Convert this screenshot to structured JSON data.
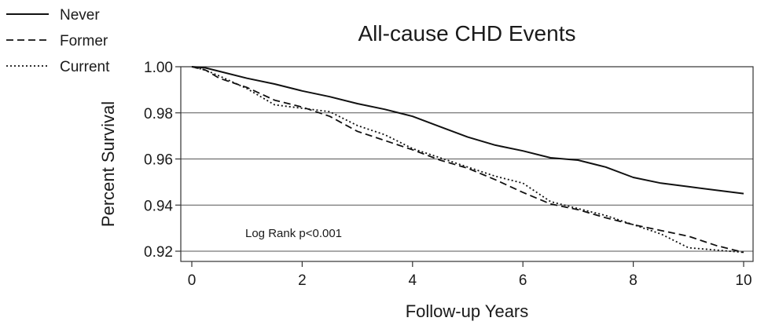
{
  "chart_data": {
    "type": "line",
    "title": "All-cause CHD Events",
    "xlabel": "Follow-up Years",
    "ylabel": "Percent Survival",
    "xlim": [
      0,
      10
    ],
    "ylim": [
      0.92,
      1.0
    ],
    "xticks": [
      0,
      2,
      4,
      6,
      8,
      10
    ],
    "yticks": [
      0.92,
      0.94,
      0.96,
      0.98,
      1.0
    ],
    "xtick_labels": [
      "0",
      "2",
      "4",
      "6",
      "8",
      "10"
    ],
    "ytick_labels": [
      "0.92",
      "0.94",
      "0.96",
      "0.98",
      "1.00"
    ],
    "grid": "horizontal",
    "legend_position": "top-left",
    "annotation": "Log Rank p<0.001",
    "series": [
      {
        "name": "Never",
        "style": "solid",
        "x": [
          0,
          0.25,
          0.5,
          1,
          1.5,
          2,
          2.5,
          3,
          3.5,
          4,
          4.5,
          5,
          5.5,
          6,
          6.5,
          7,
          7.5,
          8,
          8.5,
          9,
          9.5,
          10
        ],
        "y": [
          1.0,
          0.9995,
          0.998,
          0.995,
          0.9925,
          0.9895,
          0.987,
          0.984,
          0.9815,
          0.9785,
          0.974,
          0.9695,
          0.966,
          0.9635,
          0.9605,
          0.9595,
          0.9565,
          0.952,
          0.9495,
          0.948,
          0.9465,
          0.945
        ]
      },
      {
        "name": "Former",
        "style": "dashed",
        "x": [
          0,
          0.25,
          0.5,
          1,
          1.5,
          2,
          2.5,
          3,
          3.5,
          4,
          4.5,
          5,
          5.5,
          6,
          6.5,
          7,
          7.5,
          8,
          8.5,
          9,
          9.5,
          10
        ],
        "y": [
          1.0,
          0.9985,
          0.995,
          0.991,
          0.9855,
          0.9825,
          0.9785,
          0.972,
          0.968,
          0.964,
          0.9595,
          0.956,
          0.951,
          0.9455,
          0.9405,
          0.938,
          0.9345,
          0.9315,
          0.929,
          0.9265,
          0.9225,
          0.9195
        ]
      },
      {
        "name": "Current",
        "style": "dotted",
        "x": [
          0,
          0.25,
          0.5,
          1,
          1.5,
          2,
          2.5,
          3,
          3.5,
          4,
          4.5,
          5,
          5.5,
          6,
          6.5,
          7,
          7.5,
          8,
          8.5,
          9,
          9.5,
          10
        ],
        "y": [
          1.0,
          0.9985,
          0.996,
          0.9905,
          0.9835,
          0.982,
          0.9805,
          0.9745,
          0.9705,
          0.9645,
          0.9605,
          0.9565,
          0.9525,
          0.9495,
          0.9415,
          0.9385,
          0.9355,
          0.9315,
          0.9275,
          0.9215,
          0.9205,
          0.9195
        ]
      }
    ]
  }
}
